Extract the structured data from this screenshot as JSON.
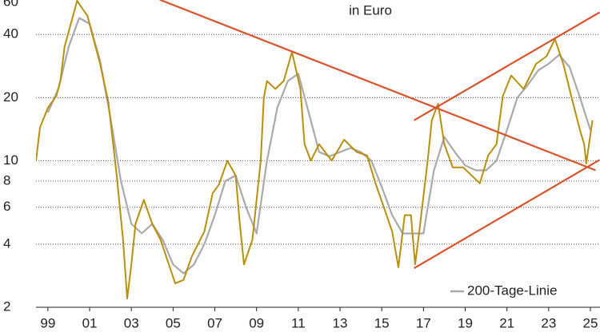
{
  "chart_data": {
    "type": "line",
    "subtitle": "in Euro",
    "log_y": true,
    "grid": true,
    "xlim": [
      1998.43,
      2025.46
    ],
    "ylim": [
      2,
      60
    ],
    "yticks": [
      2,
      4,
      6,
      8,
      10,
      20,
      40,
      60
    ],
    "xticks": [
      {
        "value": 1999,
        "label": "99"
      },
      {
        "value": 2001,
        "label": "01"
      },
      {
        "value": 2003,
        "label": "03"
      },
      {
        "value": 2005,
        "label": "05"
      },
      {
        "value": 2007,
        "label": "07"
      },
      {
        "value": 2009,
        "label": "09"
      },
      {
        "value": 2011,
        "label": "11"
      },
      {
        "value": 2013,
        "label": "13"
      },
      {
        "value": 2015,
        "label": "15"
      },
      {
        "value": 2017,
        "label": "17"
      },
      {
        "value": 2019,
        "label": "19"
      },
      {
        "value": 2021,
        "label": "21"
      },
      {
        "value": 2023,
        "label": "23"
      },
      {
        "value": 2025,
        "label": "25"
      }
    ],
    "series": [
      {
        "color": "#b8900e",
        "x": [
          1998.43,
          1998.62,
          1999.0,
          1999.4,
          1999.6,
          1999.8,
          2000.2,
          2000.4,
          2000.5,
          2000.9,
          2001.1,
          2001.5,
          2001.9,
          2002.3,
          2002.6,
          2002.8,
          2003.0,
          2003.2,
          2003.6,
          2004.0,
          2004.4,
          2004.8,
          2005.1,
          2005.5,
          2005.9,
          2006.5,
          2006.9,
          2007.2,
          2007.6,
          2008.0,
          2008.2,
          2008.4,
          2008.8,
          2009.2,
          2009.35,
          2009.5,
          2009.9,
          2010.3,
          2010.7,
          2011.1,
          2011.3,
          2011.6,
          2012.0,
          2012.6,
          2013.2,
          2013.8,
          2014.3,
          2014.7,
          2015.1,
          2015.5,
          2015.8,
          2016.1,
          2016.4,
          2016.6,
          2016.8,
          2017.2,
          2017.4,
          2017.7,
          2018.0,
          2018.4,
          2018.9,
          2019.7,
          2020.1,
          2020.5,
          2020.8,
          2021.2,
          2021.8,
          2022.4,
          2022.9,
          2023.3,
          2023.7,
          2024.1,
          2024.5,
          2024.7,
          2024.8,
          2025.1
        ],
        "values": [
          10,
          14.4,
          17.9,
          20.3,
          24,
          35,
          49,
          58,
          56,
          49,
          41,
          29,
          19,
          8.5,
          4.2,
          2.2,
          3.2,
          5,
          6.5,
          5,
          4.2,
          3.2,
          2.6,
          2.7,
          3.5,
          4.6,
          7,
          7.7,
          10,
          8.5,
          5,
          3.2,
          4.2,
          10,
          20,
          24,
          22,
          24,
          33,
          22,
          12,
          10,
          12,
          10,
          12.6,
          11,
          10.6,
          7.8,
          6,
          4.6,
          3.1,
          5.5,
          5.5,
          3.2,
          4.6,
          10,
          15.6,
          18.7,
          12,
          9.3,
          9.3,
          7.8,
          10.6,
          12,
          20.3,
          25.5,
          22,
          29,
          31.5,
          38,
          29,
          20,
          14,
          12,
          9.7,
          15.6
        ]
      },
      {
        "name": "200-Tage-Linie",
        "color": "#aaaaaa",
        "x": [
          1999.0,
          1999.5,
          2000.0,
          2000.5,
          2001.0,
          2001.5,
          2002.0,
          2002.5,
          2003.0,
          2003.5,
          2004.0,
          2004.5,
          2005.0,
          2005.5,
          2006.0,
          2006.5,
          2007.0,
          2007.5,
          2008.0,
          2008.5,
          2009.0,
          2009.5,
          2010.0,
          2010.5,
          2011.0,
          2011.5,
          2012.0,
          2012.5,
          2013.0,
          2013.5,
          2014.0,
          2014.5,
          2015.0,
          2015.5,
          2016.0,
          2016.5,
          2017.0,
          2017.5,
          2018.0,
          2018.5,
          2019.0,
          2019.5,
          2020.0,
          2020.5,
          2021.0,
          2021.5,
          2022.0,
          2022.5,
          2023.0,
          2023.5,
          2024.0,
          2024.5,
          2025.0
        ],
        "values": [
          17,
          22,
          35,
          48,
          45,
          30,
          16,
          8,
          5,
          4.5,
          5,
          4.2,
          3.2,
          2.9,
          3.2,
          4,
          5.5,
          8,
          8.5,
          6,
          4.5,
          10,
          18,
          24,
          26,
          17,
          11,
          10.5,
          11,
          11.5,
          11,
          10,
          7.5,
          5.5,
          4.5,
          4.5,
          4.5,
          9,
          13,
          11,
          9.5,
          9,
          9,
          10,
          14,
          20,
          23,
          27,
          29,
          32,
          28,
          20,
          14
        ]
      }
    ],
    "trend_lines": [
      {
        "color": "#d9532b",
        "x": [
          2004.37,
          2025.25
        ],
        "values": [
          58.6,
          9.0
        ]
      },
      {
        "color": "#d9532b",
        "x": [
          2016.55,
          2025.44
        ],
        "values": [
          3.07,
          10.1
        ]
      },
      {
        "color": "#d9532b",
        "x": [
          2016.55,
          2025.44
        ],
        "values": [
          15.6,
          51
        ]
      }
    ]
  }
}
